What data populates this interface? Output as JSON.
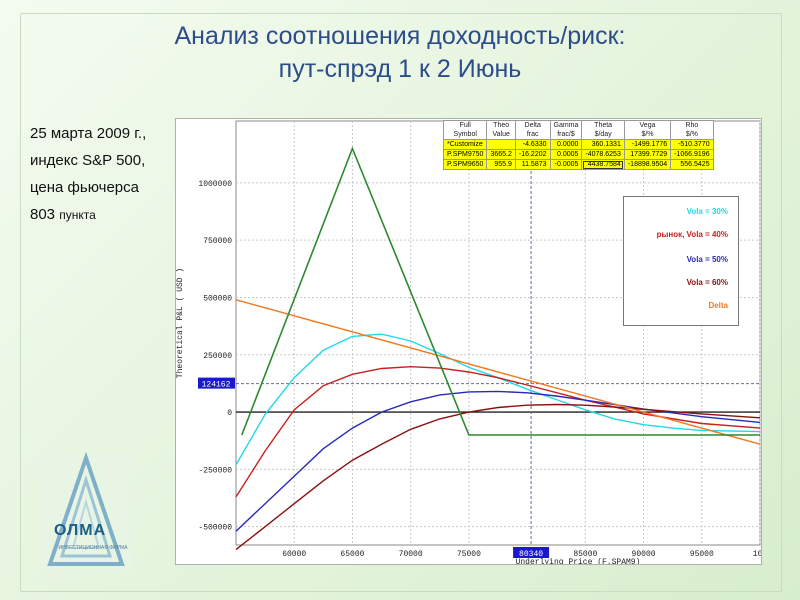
{
  "title_line1": "Анализ соотношения доходность/риск:",
  "title_line2": "пут-спрэд 1 к 2 Июнь",
  "info": {
    "line1": "25 марта 2009 г.,",
    "line2": "индекс S&P 500,",
    "line3": "цена фьючерса",
    "line4_num": "803",
    "line4_unit": "пункта"
  },
  "logo": {
    "name": "ОЛМА",
    "subtitle": "ИНВЕСТИЦИОННАЯ ФИРМА"
  },
  "greeks_table": {
    "headers": [
      [
        "Full",
        "Symbol"
      ],
      [
        "Theo",
        "Value"
      ],
      [
        "Delta",
        "frac"
      ],
      [
        "Gamma",
        "frac/$"
      ],
      [
        "Theta",
        "$/day"
      ],
      [
        "Vega",
        "$/%"
      ],
      [
        "Rho",
        "$/%"
      ]
    ],
    "rows": [
      [
        "*Customize",
        "",
        "-4.6330",
        "0.0000",
        "360.1331",
        "-1499.1776",
        "-510.3770"
      ],
      [
        "P.SPM9750",
        "3665.2",
        "-16.2202",
        "0.0005",
        "-4078.6253",
        "17399.7729",
        "-1066.9196"
      ],
      [
        "P.SPM9650",
        "955.9",
        "11.5873",
        "-0.0005",
        "4438.7584",
        "-18898.9504",
        "556.5425"
      ]
    ]
  },
  "chart_data": {
    "type": "line",
    "xlabel": "Underlying Price (F.SPAM9)",
    "ylabel": "Theoretical P&L ( USD )",
    "xlim": [
      55000,
      100000
    ],
    "ylim": [
      -580000,
      1270000
    ],
    "x_ticks": [
      "60000",
      "65000",
      "70000",
      "75000",
      "85000",
      "90000",
      "95000",
      "100"
    ],
    "y_ticks": [
      {
        "value": 1000000,
        "label": "1000000"
      },
      {
        "value": 750000,
        "label": "750000"
      },
      {
        "value": 500000,
        "label": "500000"
      },
      {
        "value": 250000,
        "label": "250000"
      },
      {
        "value": 0,
        "label": "0"
      },
      {
        "value": -250000,
        "label": "-250000"
      },
      {
        "value": -500000,
        "label": "-500000"
      }
    ],
    "current_x": 80340,
    "current_x_label": "80340",
    "current_y": 124162,
    "current_y_label": "124162",
    "grid": true,
    "legend_position": "right",
    "series": [
      {
        "name": "Vola = 30%",
        "color": "#22d8e8",
        "x": [
          55000,
          57500,
          60000,
          62500,
          65000,
          67500,
          70000,
          72500,
          75000,
          77500,
          80000,
          82500,
          85000,
          87500,
          90000,
          92500,
          95000,
          100000
        ],
        "y": [
          -230000,
          -10000,
          150000,
          270000,
          330000,
          340000,
          310000,
          255000,
          195000,
          150000,
          100000,
          55000,
          10000,
          -30000,
          -55000,
          -70000,
          -80000,
          -85000
        ]
      },
      {
        "name": "рынок, Vola = 40%",
        "color": "#c82020",
        "x": [
          55000,
          57500,
          60000,
          62500,
          65000,
          67500,
          70000,
          72500,
          75000,
          77500,
          80000,
          82500,
          85000,
          87500,
          90000,
          95000,
          100000
        ],
        "y": [
          -370000,
          -170000,
          10000,
          115000,
          165000,
          190000,
          198000,
          192000,
          175000,
          150000,
          118000,
          85000,
          52000,
          22000,
          -8000,
          -50000,
          -70000
        ]
      },
      {
        "name": "Vola = 50%",
        "color": "#2a2ab8",
        "x": [
          55000,
          57500,
          60000,
          62500,
          65000,
          67500,
          70000,
          72500,
          75000,
          77500,
          80000,
          82500,
          85000,
          87500,
          90000,
          95000,
          100000
        ],
        "y": [
          -520000,
          -400000,
          -280000,
          -160000,
          -70000,
          0,
          45000,
          75000,
          88000,
          90000,
          84000,
          70000,
          52000,
          33000,
          13000,
          -20000,
          -45000
        ]
      },
      {
        "name": "Vola = 60%",
        "color": "#8a1010",
        "x": [
          55000,
          57500,
          60000,
          62500,
          65000,
          67500,
          70000,
          72500,
          75000,
          77500,
          80000,
          82500,
          85000,
          87500,
          90000,
          95000,
          100000
        ],
        "y": [
          -600000,
          -500000,
          -400000,
          -300000,
          -210000,
          -140000,
          -75000,
          -30000,
          0,
          20000,
          30000,
          33000,
          30000,
          22000,
          12000,
          -8000,
          -25000
        ]
      },
      {
        "name": "Delta",
        "color": "#ee7a22",
        "x": [
          55000,
          100000
        ],
        "y": [
          490000,
          -140000
        ]
      },
      {
        "name": "",
        "color": "#2d8a2d",
        "x": [
          55500,
          65000,
          75000,
          100000
        ],
        "y": [
          -100000,
          1150000,
          -100000,
          -100000
        ]
      }
    ]
  }
}
